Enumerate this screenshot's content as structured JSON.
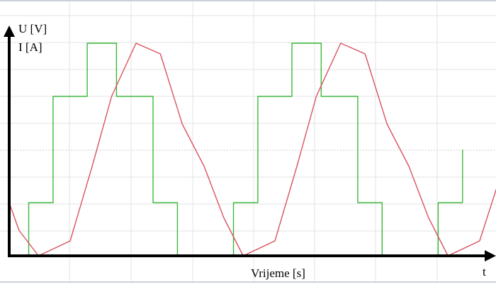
{
  "chart_data": {
    "type": "line",
    "title": "",
    "ylabel_lines": [
      "U [V]",
      "I [A]"
    ],
    "xlabel": "Vrijeme [s]",
    "x_axis_end_label": "t",
    "grid": true,
    "series": [
      {
        "color": "#3cb83c",
        "style": "step",
        "points": [
          [
            0.0,
            0.0
          ],
          [
            0.08,
            0.0
          ],
          [
            0.08,
            0.25
          ],
          [
            0.18,
            0.25
          ],
          [
            0.18,
            0.75
          ],
          [
            0.32,
            0.75
          ],
          [
            0.32,
            1.0
          ],
          [
            0.44,
            1.0
          ],
          [
            0.44,
            0.75
          ],
          [
            0.59,
            0.75
          ],
          [
            0.59,
            0.25
          ],
          [
            0.69,
            0.25
          ],
          [
            0.69,
            0.0
          ],
          [
            0.92,
            0.0
          ],
          [
            0.92,
            0.25
          ],
          [
            1.02,
            0.25
          ],
          [
            1.02,
            0.75
          ],
          [
            1.16,
            0.75
          ],
          [
            1.16,
            1.0
          ],
          [
            1.28,
            1.0
          ],
          [
            1.28,
            0.75
          ],
          [
            1.43,
            0.75
          ],
          [
            1.43,
            0.25
          ],
          [
            1.53,
            0.25
          ],
          [
            1.53,
            0.0
          ],
          [
            1.76,
            0.0
          ],
          [
            1.76,
            0.25
          ],
          [
            1.86,
            0.25
          ],
          [
            1.86,
            0.5
          ]
        ]
      },
      {
        "color": "#d9535f",
        "style": "line",
        "points": [
          [
            0.0,
            0.25
          ],
          [
            0.04,
            0.12
          ],
          [
            0.12,
            0.0
          ],
          [
            0.25,
            0.07
          ],
          [
            0.34,
            0.42
          ],
          [
            0.42,
            0.75
          ],
          [
            0.52,
            1.0
          ],
          [
            0.62,
            0.95
          ],
          [
            0.71,
            0.62
          ],
          [
            0.8,
            0.42
          ],
          [
            0.88,
            0.18
          ],
          [
            0.96,
            0.0
          ],
          [
            1.09,
            0.07
          ],
          [
            1.18,
            0.42
          ],
          [
            1.26,
            0.75
          ],
          [
            1.36,
            1.0
          ],
          [
            1.46,
            0.95
          ],
          [
            1.55,
            0.62
          ],
          [
            1.64,
            0.42
          ],
          [
            1.72,
            0.18
          ],
          [
            1.8,
            0.0
          ],
          [
            1.93,
            0.07
          ],
          [
            2.0,
            0.32
          ]
        ]
      }
    ]
  }
}
